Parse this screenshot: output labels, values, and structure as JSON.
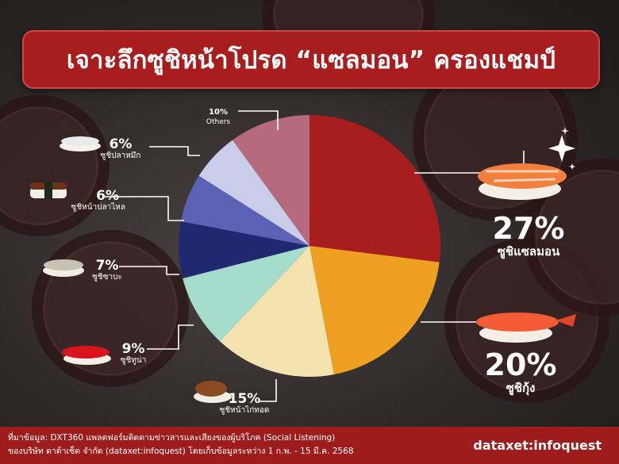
{
  "title": "เจาะลึกซูชิหน้าโปรด “แซลมอน” ครองแชมป์",
  "chart_data": {
    "type": "pie",
    "slices": [
      {
        "name": "ซูชิแซลมอน",
        "value": 27,
        "label": "27%",
        "color": "#a81e1e"
      },
      {
        "name": "ซูชิกุ้ง",
        "value": 20,
        "label": "20%",
        "color": "#f0a020"
      },
      {
        "name": "ซูชิหน้าไก่ทอด",
        "value": 15,
        "label": "15%",
        "color": "#f3e2ae"
      },
      {
        "name": "ซูชิทูน่า",
        "value": 9,
        "label": "9%",
        "color": "#a6dccb"
      },
      {
        "name": "ซูชิซาบะ",
        "value": 7,
        "label": "7%",
        "color": "#1f2870"
      },
      {
        "name": "ซูชิหน้าปลาไหล",
        "value": 6,
        "label": "6%",
        "color": "#5b62b6"
      },
      {
        "name": "ซูชิปลาหมึก",
        "value": 6,
        "label": "6%",
        "color": "#c9cde9"
      },
      {
        "name": "Others",
        "value": 10,
        "label": "10%",
        "color": "#b56b7c"
      }
    ]
  },
  "footer": {
    "source_line1": "ที่มาข้อมูล: DXT360 แพลตฟอร์มติดตามข่าวสารและเสียงของผู้บริโภค (Social Listening)",
    "source_line2": "ของบริษัท ดาต้าเซ็ต จำกัด (dataxet:infoquest) โดยเก็บข้อมูลระหว่าง  1 ก.พ. - 15 มี.ค. 2568",
    "logo": "dataxet:infoquest"
  },
  "icons": [
    "salmon-sushi-icon",
    "shrimp-sushi-icon",
    "fried-chicken-sushi-icon",
    "tuna-sushi-icon",
    "saba-sushi-icon",
    "eel-sushi-icon",
    "squid-sushi-icon",
    "sparkle-icon"
  ]
}
